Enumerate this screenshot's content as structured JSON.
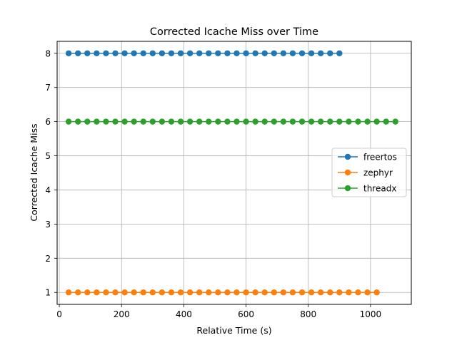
{
  "chart_data": {
    "type": "line",
    "title": "Corrected Icache Miss over Time",
    "xlabel": "Relative Time (s)",
    "ylabel": "Corrected Icache Miss",
    "xlim": [
      -7,
      1131
    ],
    "ylim": [
      0.65,
      8.35
    ],
    "xticks": [
      0,
      200,
      400,
      600,
      800,
      1000
    ],
    "yticks": [
      1,
      2,
      3,
      4,
      5,
      6,
      7,
      8
    ],
    "grid": true,
    "legend_position": "center-right",
    "series": [
      {
        "name": "freertos",
        "color": "#1f77b4",
        "x_start": 30,
        "x_step": 30,
        "count": 30,
        "value": 8
      },
      {
        "name": "zephyr",
        "color": "#ff7f0e",
        "x_start": 30,
        "x_step": 30,
        "count": 34,
        "value": 1
      },
      {
        "name": "threadx",
        "color": "#2ca02c",
        "x_start": 30,
        "x_step": 30,
        "count": 36,
        "value": 6
      }
    ]
  }
}
